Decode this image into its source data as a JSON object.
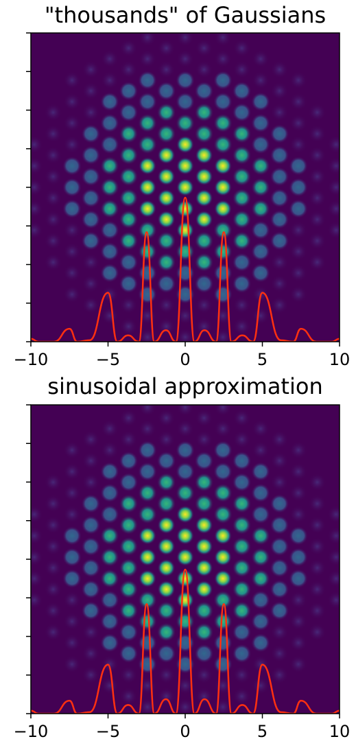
{
  "chart_data": [
    {
      "type": "heatmap",
      "title": "\"thousands\" of Gaussians",
      "xlim": [
        -10,
        10
      ],
      "x_ticks": [
        -10,
        -5,
        0,
        5,
        10
      ],
      "x_tick_labels": [
        "−10",
        "−5",
        "0",
        "5",
        "10"
      ],
      "y_tick_labels_shown": false,
      "y_tick_count": 9,
      "colormap": "viridis",
      "background_color": "#440154",
      "line_color": "#ff3010",
      "line_profile": {
        "x": [
          -10,
          -9.5,
          -8.5,
          -7.5,
          -7.0,
          -6.2,
          -5.0,
          -4.4,
          -3.7,
          -3.0,
          -2.5,
          -2.0,
          -1.25,
          -0.6,
          0.0,
          0.6,
          1.25,
          2.0,
          2.5,
          3.0,
          3.7,
          4.4,
          5.0,
          6.2,
          7.0,
          7.5,
          8.5,
          9.5,
          10
        ],
        "y": [
          0.01,
          0.0,
          0.0,
          0.045,
          0.0,
          0.005,
          0.17,
          0.0,
          0.022,
          0.0,
          0.38,
          0.0,
          0.04,
          0.0,
          0.5,
          0.0,
          0.04,
          0.0,
          0.38,
          0.0,
          0.022,
          0.0,
          0.17,
          0.005,
          0.0,
          0.045,
          0.0,
          0.0,
          0.01
        ]
      }
    },
    {
      "type": "heatmap",
      "title": "sinusoidal approximation",
      "xlim": [
        -10,
        10
      ],
      "x_ticks": [
        -10,
        -5,
        0,
        5,
        10
      ],
      "x_tick_labels": [
        "−10",
        "−5",
        "0",
        "5",
        "10"
      ],
      "y_tick_labels_shown": false,
      "y_tick_count": 9,
      "colormap": "viridis",
      "background_color": "#440154",
      "line_color": "#ff3010",
      "line_profile": {
        "x": [
          -10,
          -9.5,
          -8.5,
          -7.5,
          -7.0,
          -6.2,
          -5.0,
          -4.4,
          -3.7,
          -3.0,
          -2.5,
          -2.0,
          -1.25,
          -0.6,
          0.0,
          0.6,
          1.25,
          2.0,
          2.5,
          3.0,
          3.7,
          4.4,
          5.0,
          6.2,
          7.0,
          7.5,
          8.5,
          9.5,
          10
        ],
        "y": [
          0.01,
          0.0,
          0.0,
          0.045,
          0.0,
          0.005,
          0.17,
          0.0,
          0.03,
          0.0,
          0.38,
          0.0,
          0.05,
          0.0,
          0.5,
          0.0,
          0.05,
          0.0,
          0.38,
          0.0,
          0.03,
          0.0,
          0.17,
          0.005,
          0.0,
          0.045,
          0.0,
          0.0,
          0.01
        ]
      }
    }
  ]
}
